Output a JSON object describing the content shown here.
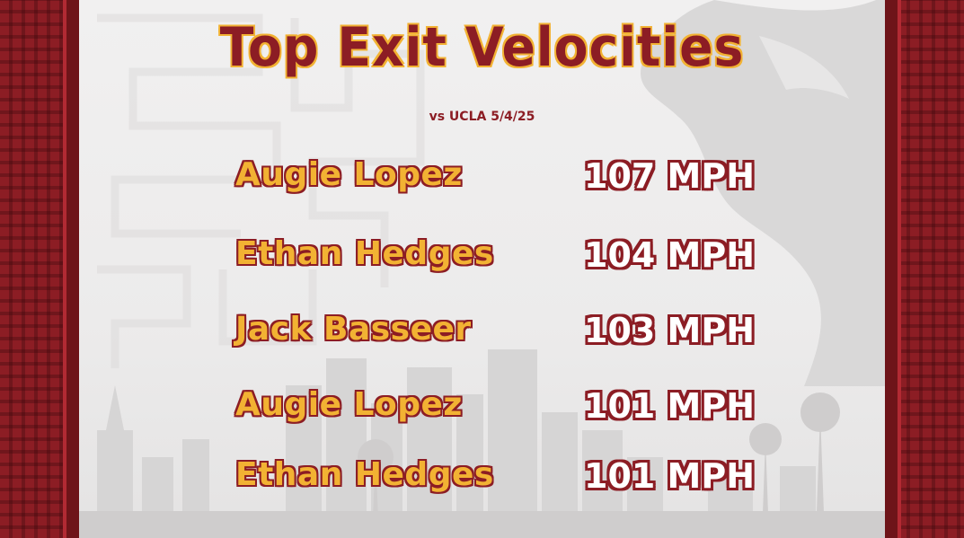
{
  "graphic": {
    "title": "Top Exit Velocities",
    "subtitle": "vs UCLA 5/4/25",
    "colors": {
      "cardinal": "#8c1d24",
      "gold": "#f2b233",
      "background": "#efeeee"
    },
    "rows": [
      {
        "player": "Augie Lopez",
        "velocity": "107 MPH"
      },
      {
        "player": "Ethan Hedges",
        "velocity": "104 MPH"
      },
      {
        "player": "Jack Basseer",
        "velocity": "103 MPH"
      },
      {
        "player": "Augie Lopez",
        "velocity": "101 MPH"
      },
      {
        "player": "Ethan Hedges",
        "velocity": "101 MPH"
      }
    ]
  }
}
